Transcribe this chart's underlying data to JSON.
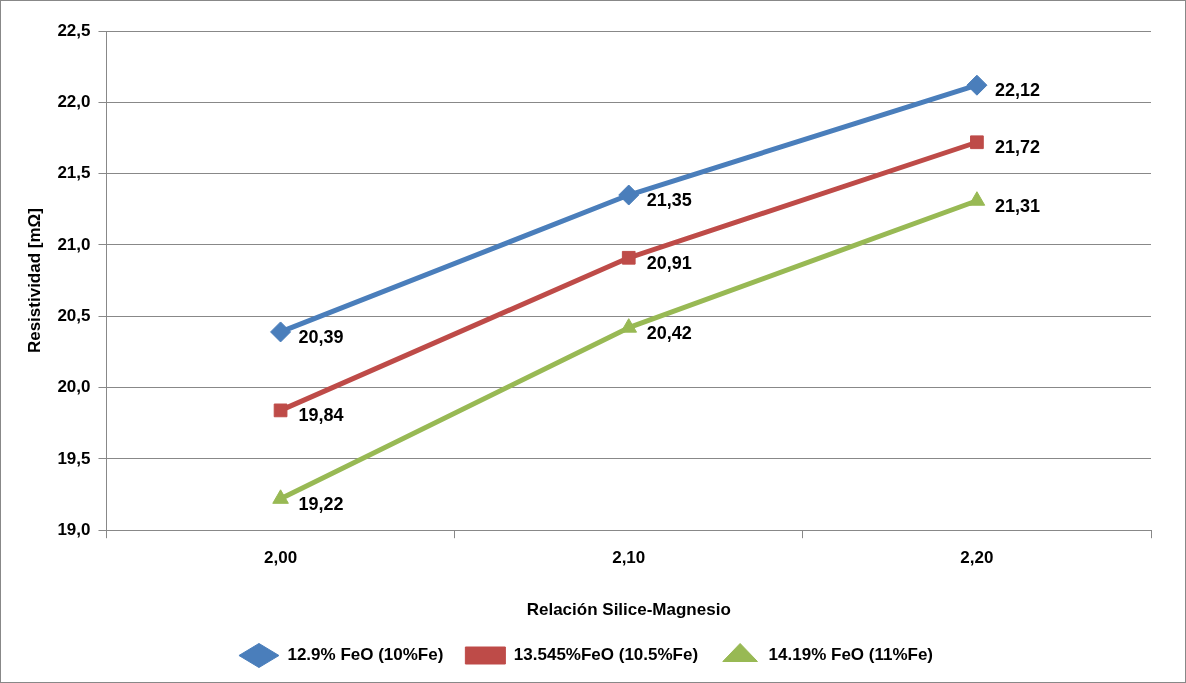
{
  "chart_data": {
    "type": "line",
    "xlabel": "Relación Silice-Magnesio",
    "ylabel": "Resistividad [mΩ]",
    "categories": [
      "2,00",
      "2,10",
      "2,20"
    ],
    "ylim": [
      19,
      22.5
    ],
    "yticks": [
      {
        "value": 19,
        "label": "19,0"
      },
      {
        "value": 19.5,
        "label": "19,5"
      },
      {
        "value": 20,
        "label": "20,0"
      },
      {
        "value": 20.5,
        "label": "20,5"
      },
      {
        "value": 21,
        "label": "21,0"
      },
      {
        "value": 21.5,
        "label": "21,5"
      },
      {
        "value": 22,
        "label": "22,0"
      },
      {
        "value": 22.5,
        "label": "22,5"
      }
    ],
    "grid": "y",
    "legend": "bottom",
    "line_style": "solid",
    "series": [
      {
        "name": "12.9% FeO (10%Fe)",
        "color": "#4a7ebb",
        "marker": "diamond",
        "values": [
          20.39,
          21.35,
          22.12
        ],
        "value_labels": [
          "20,39",
          "21,35",
          "22,12"
        ]
      },
      {
        "name": "13.545%FeO (10.5%Fe)",
        "color": "#be4b48",
        "marker": "square",
        "values": [
          19.84,
          20.91,
          21.72
        ],
        "value_labels": [
          "19,84",
          "20,91",
          "21,72"
        ]
      },
      {
        "name": "14.19% FeO (11%Fe)",
        "color": "#98b954",
        "marker": "triangle",
        "values": [
          19.22,
          20.42,
          21.31
        ],
        "value_labels": [
          "19,22",
          "20,42",
          "21,31"
        ]
      }
    ]
  }
}
